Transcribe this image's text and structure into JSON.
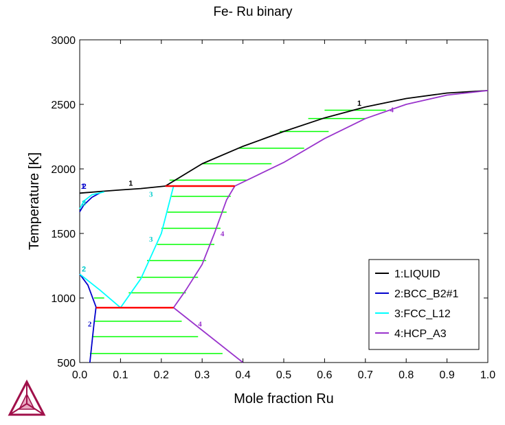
{
  "chart_data": {
    "type": "line",
    "title": "Fe- Ru binary",
    "xlabel": "Mole fraction Ru",
    "ylabel": "Temperature [K]",
    "xlim": [
      0,
      1
    ],
    "ylim": [
      500,
      3000
    ],
    "x_ticks": [
      "0.0",
      "0.1",
      "0.2",
      "0.3",
      "0.4",
      "0.5",
      "0.6",
      "0.7",
      "0.8",
      "0.9",
      "1.0"
    ],
    "y_ticks": [
      "500",
      "1000",
      "1500",
      "2000",
      "2500",
      "3000"
    ],
    "legend_position": "bottom-right",
    "series": [
      {
        "name": "1:LIQUID",
        "color": "#000000",
        "curves": [
          [
            [
              0.0,
              1812
            ],
            [
              0.05,
              1825
            ],
            [
              0.1,
              1837
            ],
            [
              0.15,
              1848
            ],
            [
              0.21,
              1867
            ]
          ],
          [
            [
              0.21,
              1867
            ],
            [
              0.3,
              2040
            ],
            [
              0.4,
              2175
            ],
            [
              0.5,
              2290
            ],
            [
              0.6,
              2395
            ],
            [
              0.7,
              2480
            ],
            [
              0.8,
              2545
            ],
            [
              0.9,
              2588
            ],
            [
              1.0,
              2607
            ]
          ]
        ]
      },
      {
        "name": "2:BCC_B2#1",
        "color": "#0000cc",
        "curves": [
          [
            [
              0.0,
              1668
            ],
            [
              0.01,
              1720
            ],
            [
              0.03,
              1780
            ],
            [
              0.05,
              1815
            ]
          ],
          [
            [
              0.0,
              1185
            ],
            [
              0.02,
              1100
            ],
            [
              0.04,
              930
            ],
            [
              0.035,
              800
            ],
            [
              0.03,
              650
            ],
            [
              0.025,
              500
            ]
          ]
        ]
      },
      {
        "name": "3:FCC_L12",
        "color": "#00ffff",
        "curves": [
          [
            [
              0.0,
              1690
            ],
            [
              0.01,
              1750
            ],
            [
              0.03,
              1800
            ],
            [
              0.06,
              1822
            ]
          ],
          [
            [
              0.0,
              1185
            ],
            [
              0.05,
              1060
            ],
            [
              0.1,
              925
            ]
          ],
          [
            [
              0.1,
              925
            ],
            [
              0.15,
              1150
            ],
            [
              0.2,
              1500
            ],
            [
              0.23,
              1867
            ]
          ]
        ]
      },
      {
        "name": "4:HCP_A3",
        "color": "#9933cc",
        "curves": [
          [
            [
              0.23,
              925
            ],
            [
              0.26,
              1060
            ],
            [
              0.3,
              1260
            ],
            [
              0.33,
              1500
            ],
            [
              0.36,
              1760
            ],
            [
              0.38,
              1867
            ]
          ],
          [
            [
              0.38,
              1867
            ],
            [
              0.5,
              2050
            ],
            [
              0.6,
              2235
            ],
            [
              0.7,
              2390
            ],
            [
              0.8,
              2500
            ],
            [
              0.9,
              2572
            ],
            [
              1.0,
              2607
            ]
          ],
          [
            [
              0.23,
              925
            ],
            [
              0.3,
              750
            ],
            [
              0.4,
              500
            ]
          ]
        ]
      }
    ],
    "invariant_lines": [
      {
        "color": "#ff0000",
        "y": 1867,
        "x": [
          0.21,
          0.38
        ]
      },
      {
        "color": "#ff0000",
        "y": 925,
        "x": [
          0.04,
          0.23
        ]
      }
    ],
    "tie_lines": {
      "color": "#00ff00",
      "segments": [
        [
          [
            0.6,
            2455
          ],
          [
            0.75,
            2455
          ]
        ],
        [
          [
            0.56,
            2390
          ],
          [
            0.7,
            2390
          ]
        ],
        [
          [
            0.49,
            2290
          ],
          [
            0.61,
            2290
          ]
        ],
        [
          [
            0.39,
            2160
          ],
          [
            0.55,
            2160
          ]
        ],
        [
          [
            0.3,
            2040
          ],
          [
            0.47,
            2040
          ]
        ],
        [
          [
            0.22,
            1913
          ],
          [
            0.41,
            1913
          ]
        ],
        [
          [
            0.225,
            1787
          ],
          [
            0.37,
            1787
          ]
        ],
        [
          [
            0.215,
            1665
          ],
          [
            0.36,
            1665
          ]
        ],
        [
          [
            0.2,
            1540
          ],
          [
            0.345,
            1540
          ]
        ],
        [
          [
            0.19,
            1415
          ],
          [
            0.33,
            1415
          ]
        ],
        [
          [
            0.165,
            1290
          ],
          [
            0.31,
            1290
          ]
        ],
        [
          [
            0.14,
            1160
          ],
          [
            0.29,
            1160
          ]
        ],
        [
          [
            0.12,
            1040
          ],
          [
            0.26,
            1040
          ]
        ],
        [
          [
            0.035,
            1000
          ],
          [
            0.06,
            1000
          ]
        ],
        [
          [
            0.035,
            820
          ],
          [
            0.25,
            820
          ]
        ],
        [
          [
            0.03,
            700
          ],
          [
            0.29,
            700
          ]
        ],
        [
          [
            0.025,
            570
          ],
          [
            0.35,
            570
          ]
        ]
      ]
    },
    "annotations": [
      {
        "text": "1",
        "x": 0.003,
        "y": 1845,
        "color": "#0000cc",
        "font": "sans"
      },
      {
        "text": "2",
        "x": 0.006,
        "y": 1845,
        "color": "#0000cc",
        "font": "sans"
      },
      {
        "text": "1",
        "x": 0.12,
        "y": 1870,
        "color": "#000000",
        "font": "sans"
      },
      {
        "text": "3",
        "x": 0.17,
        "y": 1785,
        "color": "#00cccc",
        "font": "serif"
      },
      {
        "text": "3",
        "x": 0.005,
        "y": 1715,
        "color": "#00cccc",
        "font": "sans"
      },
      {
        "text": "3",
        "x": 0.17,
        "y": 1435,
        "color": "#00cccc",
        "font": "serif"
      },
      {
        "text": "4",
        "x": 0.345,
        "y": 1480,
        "color": "#9933cc",
        "font": "serif"
      },
      {
        "text": "2",
        "x": 0.005,
        "y": 1205,
        "color": "#00cccc",
        "font": "sans"
      },
      {
        "text": "2",
        "x": 0.02,
        "y": 780,
        "color": "#0000cc",
        "font": "serif"
      },
      {
        "text": "4",
        "x": 0.29,
        "y": 780,
        "color": "#9933cc",
        "font": "serif"
      },
      {
        "text": "1",
        "x": 0.68,
        "y": 2490,
        "color": "#000000",
        "font": "sans"
      },
      {
        "text": "4",
        "x": 0.76,
        "y": 2440,
        "color": "#9933cc",
        "font": "serif"
      }
    ]
  }
}
